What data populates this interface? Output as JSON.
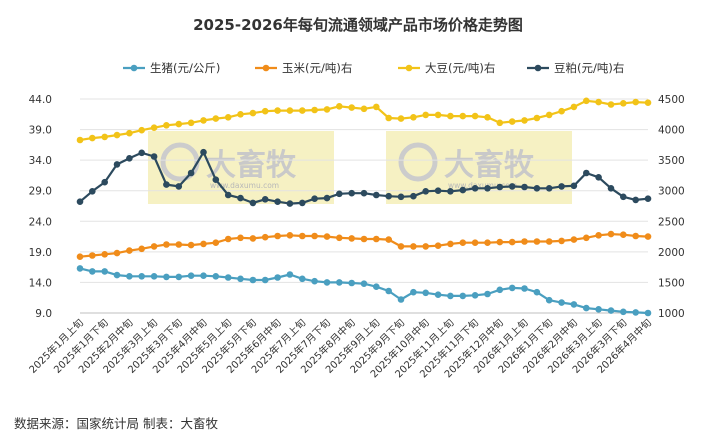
{
  "chart_data": {
    "type": "line",
    "title": "2025-2026年每旬流通领域产品市场价格走势图",
    "source_note": "数据来源：国家统计局  制表：大畜牧",
    "watermark": {
      "brand": "大畜牧",
      "url": "www.daxumu.com"
    },
    "x": [
      "2025年1月上旬",
      "2025年1月中旬",
      "2025年1月下旬",
      "2025年2月上旬",
      "2025年2月中旬",
      "2025年2月下旬",
      "2025年3月上旬",
      "2025年3月中旬",
      "2025年3月下旬",
      "2025年4月上旬",
      "2025年4月中旬",
      "2025年4月下旬",
      "2025年5月上旬",
      "2025年5月中旬",
      "2025年5月下旬",
      "2025年6月上旬",
      "2025年6月中旬",
      "2025年6月下旬",
      "2025年7月上旬",
      "2025年7月中旬",
      "2025年7月下旬",
      "2025年8月上旬",
      "2025年8月中旬",
      "2025年8月下旬",
      "2025年9月上旬",
      "2025年9月中旬",
      "2025年9月下旬",
      "2025年10月上旬",
      "2025年10月中旬",
      "2025年10月下旬",
      "2025年11月上旬",
      "2025年11月中旬",
      "2025年11月下旬",
      "2025年12月上旬",
      "2025年12月中旬",
      "2025年12月下旬",
      "2026年1月上旬",
      "2026年1月中旬",
      "2026年1月下旬",
      "2026年2月上旬",
      "2026年2月中旬",
      "2026年2月下旬",
      "2026年3月上旬",
      "2026年3月中旬",
      "2026年3月下旬",
      "2026年4月上旬",
      "2026年4月中旬"
    ],
    "x_tick_labels": [
      "2025年1月上旬",
      "2025年1月下旬",
      "2025年2月中旬",
      "2025年3月上旬",
      "2025年3月下旬",
      "2025年4月中旬",
      "2025年5月上旬",
      "2025年5月下旬",
      "2025年6月中旬",
      "2025年7月上旬",
      "2025年7月下旬",
      "2025年8月中旬",
      "2025年9月上旬",
      "2025年9月下旬",
      "2025年10月中旬",
      "2025年11月上旬",
      "2025年11月下旬",
      "2025年12月中旬",
      "2026年1月上旬",
      "2026年1月下旬",
      "2026年2月中旬",
      "2026年3月上旬",
      "2026年3月下旬",
      "2026年4月中旬"
    ],
    "y_left": {
      "ticks": [
        "9.0",
        "14.0",
        "19.0",
        "24.0",
        "29.0",
        "34.0",
        "39.0",
        "44.0"
      ],
      "lim": [
        9,
        44
      ]
    },
    "y_right": {
      "ticks": [
        "1000",
        "1500",
        "2000",
        "2500",
        "3000",
        "3500",
        "4000",
        "4500"
      ],
      "lim": [
        1000,
        4500
      ]
    },
    "legend_position": "top",
    "grid": "horizontal",
    "series": [
      {
        "name": "生猪(元/公斤)",
        "axis": "left",
        "color": "#4a9fc0",
        "values": [
          16.3,
          15.8,
          15.8,
          15.2,
          15.0,
          15.0,
          15.0,
          14.9,
          14.9,
          15.1,
          15.1,
          15.0,
          14.8,
          14.6,
          14.4,
          14.4,
          14.8,
          15.3,
          14.6,
          14.2,
          14.0,
          14.0,
          13.9,
          13.8,
          13.3,
          12.6,
          11.2,
          12.4,
          12.3,
          12.0,
          11.8,
          11.8,
          11.9,
          12.1,
          12.8,
          13.1,
          13.0,
          12.4,
          11.1,
          10.7,
          10.4,
          9.8,
          9.6,
          9.4,
          9.2,
          9.1,
          9.0
        ]
      },
      {
        "name": "玉米(元/吨)右",
        "axis": "right",
        "color": "#f08c1a",
        "values": [
          1920,
          1940,
          1960,
          1980,
          2020,
          2050,
          2090,
          2120,
          2120,
          2110,
          2130,
          2150,
          2210,
          2230,
          2220,
          2240,
          2260,
          2270,
          2260,
          2260,
          2250,
          2230,
          2220,
          2210,
          2210,
          2200,
          2090,
          2090,
          2090,
          2100,
          2130,
          2150,
          2150,
          2150,
          2160,
          2160,
          2170,
          2170,
          2170,
          2180,
          2200,
          2230,
          2270,
          2290,
          2280,
          2260,
          2250
        ]
      },
      {
        "name": "大豆(元/吨)右",
        "axis": "right",
        "color": "#f2c318",
        "values": [
          3830,
          3860,
          3880,
          3910,
          3940,
          3990,
          4030,
          4070,
          4090,
          4110,
          4150,
          4180,
          4200,
          4250,
          4270,
          4300,
          4310,
          4310,
          4310,
          4320,
          4330,
          4380,
          4360,
          4340,
          4370,
          4190,
          4180,
          4200,
          4240,
          4240,
          4220,
          4220,
          4220,
          4200,
          4110,
          4130,
          4150,
          4190,
          4240,
          4300,
          4370,
          4470,
          4450,
          4410,
          4430,
          4450,
          4440
        ]
      },
      {
        "name": "豆粕(元/吨)右",
        "axis": "right",
        "color": "#2c4a5e",
        "values": [
          2820,
          2990,
          3140,
          3430,
          3530,
          3620,
          3560,
          3100,
          3070,
          3290,
          3630,
          3180,
          2930,
          2880,
          2800,
          2860,
          2820,
          2790,
          2800,
          2870,
          2880,
          2950,
          2960,
          2960,
          2930,
          2910,
          2900,
          2910,
          2990,
          3000,
          2990,
          3010,
          3040,
          3040,
          3060,
          3070,
          3060,
          3040,
          3040,
          3070,
          3080,
          3290,
          3220,
          3040,
          2900,
          2850,
          2870
        ]
      }
    ]
  }
}
